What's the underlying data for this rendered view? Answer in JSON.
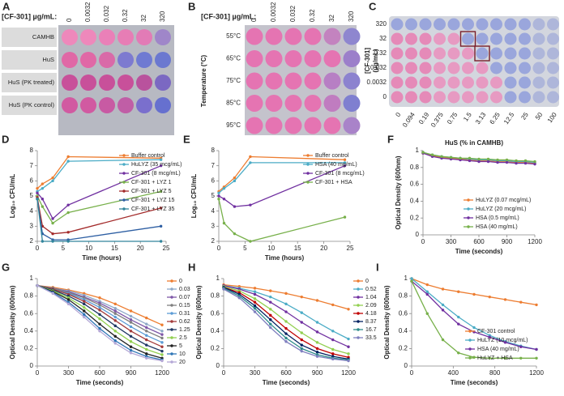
{
  "panel_A": {
    "label": "A",
    "header": "[CF-301] µg/mL:",
    "columns": [
      "0",
      "0.0032",
      "0.032",
      "0.32",
      "32",
      "320"
    ],
    "rows": [
      {
        "name": "CAMHB",
        "colors": [
          "#ee88bb",
          "#ee88bb",
          "#ea80b8",
          "#e77db5",
          "#e27bb6",
          "#9f86c9"
        ]
      },
      {
        "name": "HuS",
        "colors": [
          "#e068a6",
          "#e068a6",
          "#d96aa8",
          "#7d7ad0",
          "#6f7ad2",
          "#6b78d0"
        ]
      },
      {
        "name": "HuS (PK treated)",
        "colors": [
          "#c8509a",
          "#c8509a",
          "#c8509a",
          "#c8509a",
          "#b9529d",
          "#7b68c2"
        ]
      },
      {
        "name": "HuS (PK control)",
        "colors": [
          "#d15aa1",
          "#d15aa1",
          "#c85aa3",
          "#c05ea6",
          "#7a6fcd",
          "#6670cf"
        ]
      }
    ]
  },
  "panel_B": {
    "label": "B",
    "header": "[CF-301] µg/mL:",
    "y_label": "Temperature (°C)",
    "columns": [
      "0",
      "0.0032",
      "0.032",
      "0.32",
      "32",
      "320"
    ],
    "rows": [
      {
        "name": "55°C",
        "colors": [
          "#e574b2",
          "#e574b2",
          "#e574b2",
          "#e574b2",
          "#c383bf",
          "#8e86cf"
        ]
      },
      {
        "name": "65°C",
        "colors": [
          "#e574b2",
          "#e574b2",
          "#e574b2",
          "#e574b2",
          "#e574b2",
          "#9c7fca"
        ]
      },
      {
        "name": "75°C",
        "colors": [
          "#e574b2",
          "#e574b2",
          "#e574b2",
          "#e574b2",
          "#b77fc4",
          "#8c82cf"
        ]
      },
      {
        "name": "85°C",
        "colors": [
          "#e574b2",
          "#e574b2",
          "#e574b2",
          "#e574b2",
          "#c07cc0",
          "#7f7fd0"
        ]
      },
      {
        "name": "95°C",
        "colors": [
          "#e574b2",
          "#e574b2",
          "#e574b2",
          "#e574b2",
          "#e574b2",
          "#a983c9"
        ]
      }
    ]
  },
  "panel_C": {
    "label": "C",
    "y_label": [
      "[CF-301]",
      "(µg/mL)"
    ],
    "x_label": "HuS (% in CAMHB)",
    "rows": [
      "320",
      "32",
      "0.32",
      "0.032",
      "0.0032",
      "0"
    ],
    "columns": [
      "0",
      "0.094",
      "0.19",
      "0.375",
      "0.75",
      "1.5",
      "3.13",
      "6.25",
      "12.5",
      "25",
      "50",
      "100"
    ]
  },
  "chart_data": [
    {
      "type": "line",
      "panel_label": "D",
      "x_label": "Time (hours)",
      "y_label": "Log₁₀ CFU/mL",
      "legend": "upper right",
      "x": [
        0,
        1,
        3,
        6,
        24
      ],
      "xlim": [
        0,
        25
      ],
      "xticks": [
        0,
        5,
        10,
        15,
        20,
        25
      ],
      "ylim": [
        2,
        8
      ],
      "yticks": [
        2,
        3,
        4,
        5,
        6,
        7,
        8
      ],
      "series": [
        {
          "name": "Buffer control",
          "color": "#ed7d31",
          "values": [
            5.5,
            5.8,
            6.2,
            7.6,
            7.5
          ]
        },
        {
          "name": "HuLYZ (35 mcg/mL)",
          "color": "#4bacc6",
          "values": [
            5.3,
            5.5,
            6.0,
            7.3,
            7.4
          ]
        },
        {
          "name": "CF-301 (8 mcg/mL)",
          "color": "#7030a0",
          "values": [
            5.2,
            4.8,
            3.5,
            4.4,
            7.0
          ]
        },
        {
          "name": "CF-301 + LYZ 1",
          "color": "#77b04a",
          "values": [
            5.0,
            4.3,
            3.2,
            3.9,
            5.3
          ]
        },
        {
          "name": "CF-301 + LYZ 5",
          "color": "#a32a2a",
          "values": [
            4.9,
            3.0,
            2.5,
            2.6,
            4.2
          ]
        },
        {
          "name": "CF-301 + LYZ 15",
          "color": "#2e5fa3",
          "values": [
            4.8,
            2.5,
            2.1,
            2.1,
            3.0
          ]
        },
        {
          "name": "CF-301 + LYZ 35",
          "color": "#31859c",
          "values": [
            4.8,
            2.0,
            2.0,
            2.0,
            2.0
          ]
        }
      ]
    },
    {
      "type": "line",
      "panel_label": "E",
      "x_label": "Time (hours)",
      "y_label": "Log₁₀ CFU/mL",
      "legend": "upper right",
      "x": [
        0,
        1,
        3,
        6,
        24
      ],
      "xlim": [
        0,
        25
      ],
      "xticks": [
        0,
        5,
        10,
        15,
        20,
        25
      ],
      "ylim": [
        2,
        8
      ],
      "yticks": [
        2,
        3,
        4,
        5,
        6,
        7,
        8
      ],
      "series": [
        {
          "name": "Buffer control",
          "color": "#ed7d31",
          "values": [
            5.3,
            5.6,
            6.2,
            7.6,
            7.4
          ]
        },
        {
          "name": "HSA (40 mg/mL)",
          "color": "#4bacc6",
          "values": [
            5.2,
            5.5,
            6.0,
            7.2,
            7.2
          ]
        },
        {
          "name": "CF-301 (8 mcg/mL)",
          "color": "#7030a0",
          "values": [
            5.0,
            4.8,
            4.3,
            4.4,
            7.0
          ]
        },
        {
          "name": "CF-301 + HSA",
          "color": "#77b04a",
          "values": [
            4.8,
            3.2,
            2.5,
            2.0,
            3.6
          ]
        }
      ]
    },
    {
      "type": "line",
      "panel_label": "F",
      "x_label": "Time (seconds)",
      "y_label": "Optical Density (600nm)",
      "legend": "lower right",
      "x": [
        0,
        100,
        200,
        300,
        400,
        500,
        600,
        700,
        800,
        900,
        1000,
        1100,
        1200
      ],
      "xlim": [
        0,
        1200
      ],
      "xticks": [
        0,
        300,
        600,
        900,
        1200
      ],
      "ylim": [
        0,
        1
      ],
      "yticks": [
        0,
        0.2,
        0.4,
        0.6,
        0.8,
        1
      ],
      "series": [
        {
          "name": "HuLYZ (0.07 mcg/mL)",
          "color": "#ed7d31",
          "values": [
            0.97,
            0.94,
            0.92,
            0.91,
            0.9,
            0.89,
            0.88,
            0.88,
            0.87,
            0.87,
            0.86,
            0.86,
            0.85
          ]
        },
        {
          "name": "HuLYZ (20 mcg/mL)",
          "color": "#4bacc6",
          "values": [
            0.98,
            0.95,
            0.93,
            0.92,
            0.91,
            0.9,
            0.89,
            0.89,
            0.88,
            0.88,
            0.87,
            0.87,
            0.86
          ]
        },
        {
          "name": "HSA (0.5 mg/mL)",
          "color": "#7030a0",
          "values": [
            0.97,
            0.93,
            0.91,
            0.9,
            0.89,
            0.88,
            0.87,
            0.87,
            0.86,
            0.86,
            0.85,
            0.85,
            0.84
          ]
        },
        {
          "name": "HSA (40 mg/mL)",
          "color": "#77b04a",
          "values": [
            0.98,
            0.95,
            0.93,
            0.92,
            0.91,
            0.91,
            0.9,
            0.9,
            0.89,
            0.89,
            0.88,
            0.88,
            0.87
          ]
        }
      ]
    },
    {
      "type": "line",
      "panel_label": "G",
      "x_label": "Time (seconds)",
      "y_label": "Optical Density (600nm)",
      "legend": "outside right",
      "x": [
        0,
        150,
        300,
        450,
        600,
        750,
        900,
        1050,
        1200
      ],
      "xlim": [
        0,
        1200
      ],
      "xticks": [
        0,
        300,
        600,
        900,
        1200
      ],
      "ylim": [
        0,
        1
      ],
      "yticks": [
        0,
        0.2,
        0.4,
        0.6,
        0.8,
        1
      ],
      "series": [
        {
          "name": "0",
          "color": "#ed7d31",
          "values": [
            0.92,
            0.9,
            0.87,
            0.83,
            0.78,
            0.71,
            0.63,
            0.55,
            0.47
          ]
        },
        {
          "name": "0.03",
          "color": "#8ea9c8",
          "values": [
            0.92,
            0.89,
            0.86,
            0.81,
            0.74,
            0.66,
            0.57,
            0.48,
            0.4
          ]
        },
        {
          "name": "0.07",
          "color": "#7e57a8",
          "values": [
            0.92,
            0.89,
            0.85,
            0.79,
            0.72,
            0.63,
            0.53,
            0.44,
            0.36
          ]
        },
        {
          "name": "0.15",
          "color": "#7f7f7f",
          "values": [
            0.92,
            0.89,
            0.84,
            0.78,
            0.7,
            0.6,
            0.5,
            0.4,
            0.32
          ]
        },
        {
          "name": "0.31",
          "color": "#5b9bd5",
          "values": [
            0.92,
            0.88,
            0.83,
            0.76,
            0.67,
            0.56,
            0.45,
            0.35,
            0.27
          ]
        },
        {
          "name": "0.62",
          "color": "#a33b3b",
          "values": [
            0.92,
            0.88,
            0.82,
            0.74,
            0.64,
            0.52,
            0.4,
            0.3,
            0.22
          ]
        },
        {
          "name": "1.25",
          "color": "#1f3864",
          "values": [
            0.92,
            0.87,
            0.8,
            0.71,
            0.59,
            0.46,
            0.34,
            0.24,
            0.17
          ]
        },
        {
          "name": "2.5",
          "color": "#92d050",
          "values": [
            0.92,
            0.86,
            0.78,
            0.67,
            0.54,
            0.4,
            0.28,
            0.19,
            0.13
          ]
        },
        {
          "name": "5",
          "color": "#222222",
          "values": [
            0.92,
            0.85,
            0.76,
            0.63,
            0.48,
            0.34,
            0.22,
            0.14,
            0.09
          ]
        },
        {
          "name": "10",
          "color": "#2e75b6",
          "values": [
            0.92,
            0.84,
            0.73,
            0.59,
            0.43,
            0.29,
            0.18,
            0.11,
            0.07
          ]
        },
        {
          "name": "20",
          "color": "#b4a7d6",
          "values": [
            0.92,
            0.83,
            0.71,
            0.56,
            0.4,
            0.26,
            0.15,
            0.09,
            0.06
          ]
        }
      ]
    },
    {
      "type": "line",
      "panel_label": "H",
      "x_label": "Time (seconds)",
      "y_label": "Optical Density (600nm)",
      "legend": "outside right",
      "x": [
        0,
        150,
        300,
        450,
        600,
        750,
        900,
        1050,
        1200
      ],
      "xlim": [
        0,
        1200
      ],
      "xticks": [
        0,
        300,
        600,
        900,
        1200
      ],
      "ylim": [
        0,
        1
      ],
      "yticks": [
        0,
        0.2,
        0.4,
        0.6,
        0.8,
        1
      ],
      "series": [
        {
          "name": "0",
          "color": "#ed7d31",
          "values": [
            0.93,
            0.91,
            0.89,
            0.86,
            0.83,
            0.79,
            0.75,
            0.7,
            0.65
          ]
        },
        {
          "name": "0.52",
          "color": "#4bacc6",
          "values": [
            0.92,
            0.89,
            0.85,
            0.79,
            0.71,
            0.61,
            0.5,
            0.4,
            0.31
          ]
        },
        {
          "name": "1.04",
          "color": "#7030a0",
          "values": [
            0.92,
            0.88,
            0.82,
            0.73,
            0.62,
            0.5,
            0.39,
            0.3,
            0.22
          ]
        },
        {
          "name": "2.09",
          "color": "#92d050",
          "values": [
            0.91,
            0.86,
            0.77,
            0.65,
            0.51,
            0.38,
            0.27,
            0.19,
            0.14
          ]
        },
        {
          "name": "4.18",
          "color": "#c00000",
          "values": [
            0.9,
            0.84,
            0.73,
            0.58,
            0.43,
            0.3,
            0.2,
            0.14,
            0.1
          ]
        },
        {
          "name": "8.37",
          "color": "#002060",
          "values": [
            0.9,
            0.82,
            0.69,
            0.53,
            0.37,
            0.24,
            0.16,
            0.11,
            0.08
          ]
        },
        {
          "name": "16.7",
          "color": "#2e8b8b",
          "values": [
            0.89,
            0.8,
            0.66,
            0.48,
            0.32,
            0.2,
            0.13,
            0.09,
            0.07
          ]
        },
        {
          "name": "33.5",
          "color": "#7f7fbf",
          "values": [
            0.88,
            0.78,
            0.62,
            0.44,
            0.28,
            0.17,
            0.11,
            0.08,
            0.06
          ]
        }
      ]
    },
    {
      "type": "line",
      "panel_label": "I",
      "x_label": "Time (seconds)",
      "y_label": "Optical Density (600nm)",
      "legend": "lower right",
      "x": [
        0,
        150,
        300,
        450,
        600,
        750,
        900,
        1050,
        1200
      ],
      "xlim": [
        0,
        1200
      ],
      "xticks": [
        0,
        400,
        800,
        1200
      ],
      "ylim": [
        0,
        1
      ],
      "yticks": [
        0,
        0.2,
        0.4,
        0.6,
        0.8,
        1
      ],
      "series": [
        {
          "name": "CF-301 control",
          "color": "#ed7d31",
          "values": [
            1.0,
            0.93,
            0.88,
            0.85,
            0.82,
            0.79,
            0.76,
            0.73,
            0.7
          ]
        },
        {
          "name": "HuLYZ (10 mcg/mL)",
          "color": "#4bacc6",
          "values": [
            1.0,
            0.85,
            0.7,
            0.56,
            0.44,
            0.35,
            0.28,
            0.23,
            0.19
          ]
        },
        {
          "name": "HSA (40 mg/mL)",
          "color": "#7030a0",
          "values": [
            0.97,
            0.82,
            0.64,
            0.48,
            0.39,
            0.33,
            0.27,
            0.22,
            0.19
          ]
        },
        {
          "name": "HuLYZ + HSA",
          "color": "#77b04a",
          "values": [
            0.97,
            0.6,
            0.3,
            0.15,
            0.1,
            0.09,
            0.09,
            0.09,
            0.09
          ]
        }
      ]
    }
  ]
}
